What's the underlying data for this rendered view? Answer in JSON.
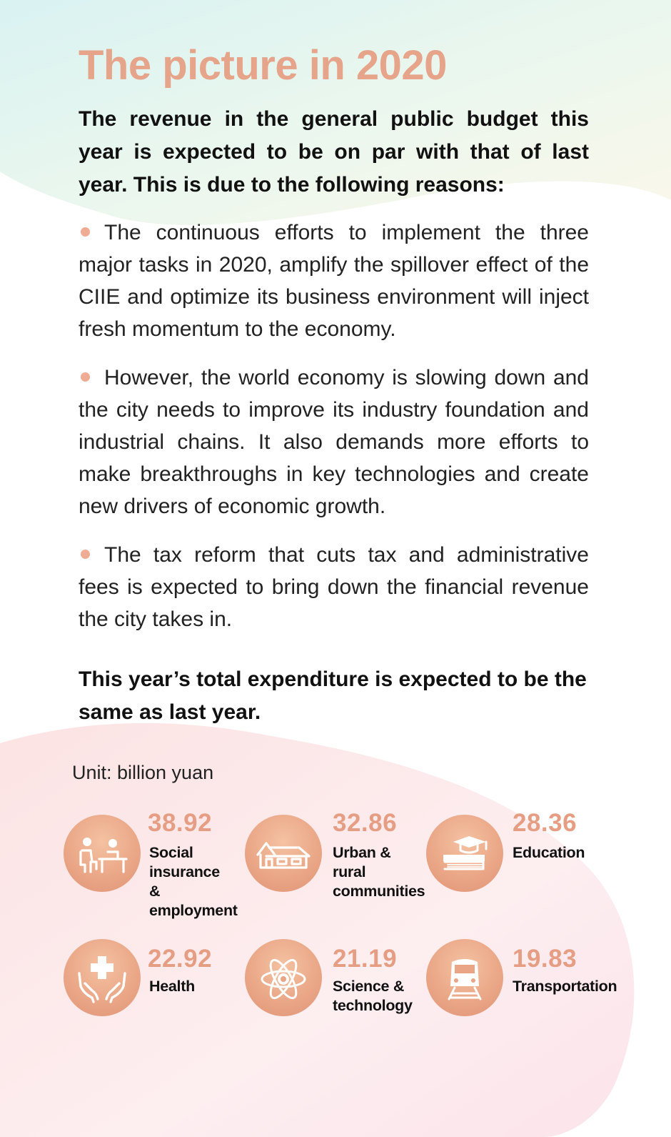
{
  "title": "The picture in 2020",
  "intro": "The revenue in the general public budget this year is expected to be on par with that of last year. This is due to the following reasons:",
  "bullets": [
    "The continuous efforts to implement the three major tasks in 2020, amplify the spillover effect of the CIIE and optimize its business environment will inject fresh momentum to the economy.",
    "However, the world economy is slowing down and the city needs to improve its industry foundation and industrial chains. It also demands more efforts to make breakthroughs in key technologies and create new drivers of economic growth.",
    "The tax reform that cuts tax and administrative fees is expected to bring down the financial revenue the city takes in."
  ],
  "expenditure_note": "This year’s total expenditure is expected to be the same as last year.",
  "unit": "Unit: billion yuan",
  "colors": {
    "title": "#e6a48a",
    "bullet_dot": "#efab93",
    "number": "#e59e83",
    "circle": "#e9a585"
  },
  "items": [
    {
      "value": "38.92",
      "label": "Social\ninsurance\n& employment",
      "icon": "office-desk-icon"
    },
    {
      "value": "32.86",
      "label": "Urban &\nrural\ncommunities",
      "icon": "house-icon"
    },
    {
      "value": "28.36",
      "label": "Education",
      "icon": "books-graduation-cap-icon"
    },
    {
      "value": "22.92",
      "label": "Health",
      "icon": "hands-medical-cross-icon"
    },
    {
      "value": "21.19",
      "label": "Science &\ntechnology",
      "icon": "atom-icon"
    },
    {
      "value": "19.83",
      "label": "Transportation",
      "icon": "train-icon"
    }
  ]
}
